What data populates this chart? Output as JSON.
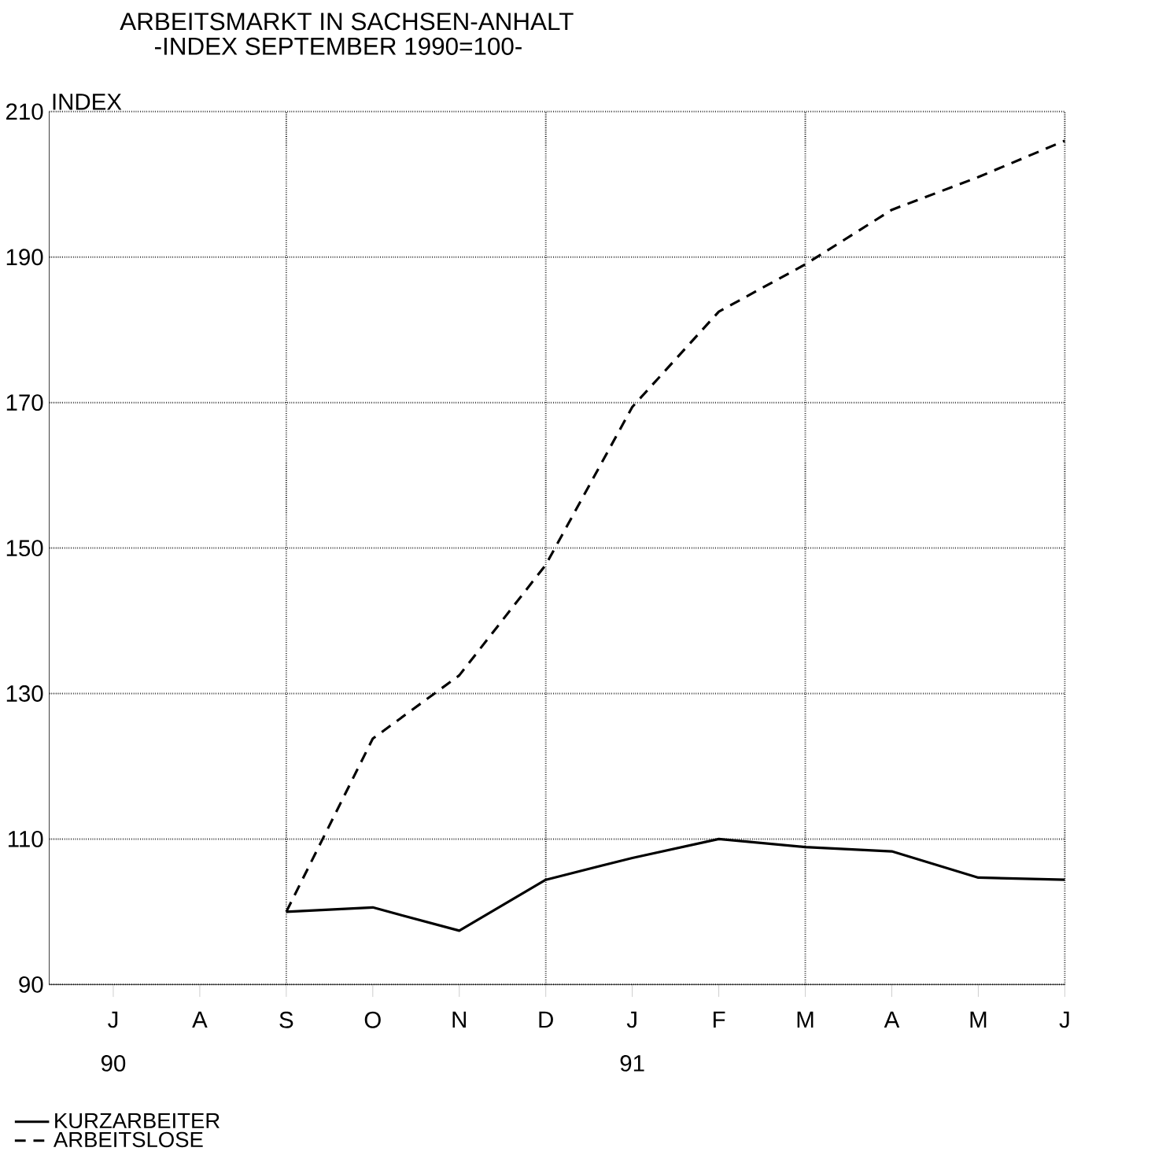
{
  "chart_data": {
    "type": "line",
    "title": "ARBEITSMARKT IN SACHSEN-ANHALT",
    "subtitle": "-INDEX SEPTEMBER 1990=100-",
    "ylabel": "INDEX",
    "categories": [
      "J",
      "A",
      "S",
      "O",
      "N",
      "D",
      "J",
      "F",
      "M",
      "A",
      "M",
      "J"
    ],
    "annotations": [
      "90",
      "91"
    ],
    "series": [
      {
        "name": "KURZARBEITER",
        "color": "#000000",
        "line_style": "solid",
        "values": [
          null,
          null,
          100,
          100.6,
          97.4,
          104.4,
          107.4,
          110,
          108.9,
          108.3,
          104.7,
          104.4
        ]
      },
      {
        "name": "ARBEITSLOSE",
        "color": "#000000",
        "line_style": "dashed",
        "values": [
          null,
          null,
          100,
          123.8,
          132.5,
          147.7,
          169.4,
          182.5,
          189,
          196.5,
          201,
          206
        ]
      }
    ],
    "ylim": [
      90,
      210
    ],
    "yticks": [
      90,
      110,
      130,
      150,
      170,
      190,
      210
    ],
    "grid": true,
    "legend": "bottom left"
  }
}
